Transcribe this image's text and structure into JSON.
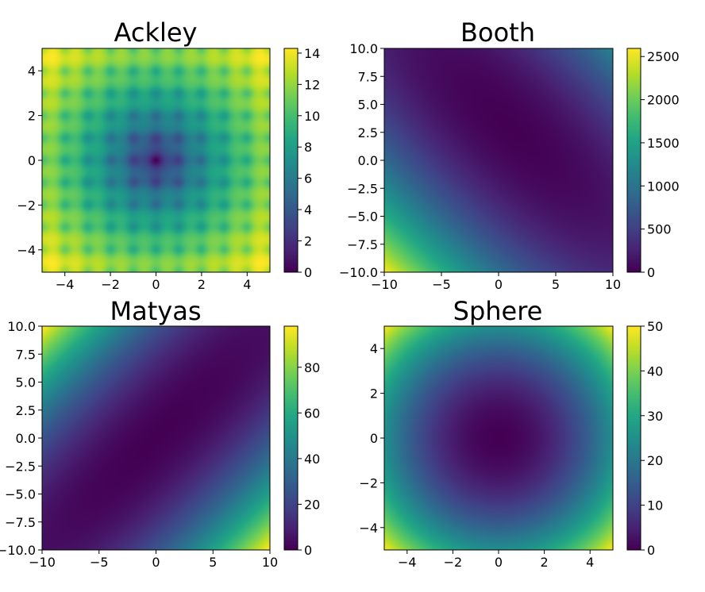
{
  "chart_data": [
    {
      "type": "heatmap",
      "title": "Ackley",
      "function": "ackley",
      "colormap": "viridis",
      "xlim": [
        -5,
        5
      ],
      "ylim": [
        -5,
        5
      ],
      "xticks": [
        "−4",
        "−2",
        "0",
        "2",
        "4"
      ],
      "xtick_values": [
        -4,
        -2,
        0,
        2,
        4
      ],
      "yticks": [
        "−4",
        "−2",
        "0",
        "2",
        "4"
      ],
      "ytick_values": [
        -4,
        -2,
        0,
        2,
        4
      ],
      "colorbar_range": [
        0,
        14.3
      ],
      "colorbar_ticks": [
        "0",
        "2",
        "4",
        "6",
        "8",
        "10",
        "12",
        "14"
      ],
      "colorbar_tick_values": [
        0,
        2,
        4,
        6,
        8,
        10,
        12,
        14
      ]
    },
    {
      "type": "heatmap",
      "title": "Booth",
      "function": "booth",
      "colormap": "viridis",
      "xlim": [
        -10,
        10
      ],
      "ylim": [
        -10,
        10
      ],
      "xticks": [
        "−10",
        "−5",
        "0",
        "5",
        "10"
      ],
      "xtick_values": [
        -10,
        -5,
        0,
        5,
        10
      ],
      "yticks": [
        "−10.0",
        "−7.5",
        "−5.0",
        "−2.5",
        "0.0",
        "2.5",
        "5.0",
        "7.5",
        "10.0"
      ],
      "ytick_values": [
        -10,
        -7.5,
        -5,
        -2.5,
        0,
        2.5,
        5,
        7.5,
        10
      ],
      "colorbar_range": [
        0,
        2594
      ],
      "colorbar_ticks": [
        "0",
        "500",
        "1000",
        "1500",
        "2000",
        "2500"
      ],
      "colorbar_tick_values": [
        0,
        500,
        1000,
        1500,
        2000,
        2500
      ]
    },
    {
      "type": "heatmap",
      "title": "Matyas",
      "function": "matyas",
      "colormap": "viridis",
      "xlim": [
        -10,
        10
      ],
      "ylim": [
        -10,
        10
      ],
      "xticks": [
        "−10",
        "−5",
        "0",
        "5",
        "10"
      ],
      "xtick_values": [
        -10,
        -5,
        0,
        5,
        10
      ],
      "yticks": [
        "−10.0",
        "−7.5",
        "−5.0",
        "−2.5",
        "0.0",
        "2.5",
        "5.0",
        "7.5",
        "10.0"
      ],
      "ytick_values": [
        -10,
        -7.5,
        -5,
        -2.5,
        0,
        2.5,
        5,
        7.5,
        10
      ],
      "colorbar_range": [
        0,
        98
      ],
      "colorbar_ticks": [
        "0",
        "20",
        "40",
        "60",
        "80"
      ],
      "colorbar_tick_values": [
        0,
        20,
        40,
        60,
        80
      ]
    },
    {
      "type": "heatmap",
      "title": "Sphere",
      "function": "sphere",
      "colormap": "viridis",
      "xlim": [
        -5,
        5
      ],
      "ylim": [
        -5,
        5
      ],
      "xticks": [
        "−4",
        "−2",
        "0",
        "2",
        "4"
      ],
      "xtick_values": [
        -4,
        -2,
        0,
        2,
        4
      ],
      "yticks": [
        "−4",
        "−2",
        "0",
        "2",
        "4"
      ],
      "ytick_values": [
        -4,
        -2,
        0,
        2,
        4
      ],
      "colorbar_range": [
        0,
        50
      ],
      "colorbar_ticks": [
        "0",
        "10",
        "20",
        "30",
        "40",
        "50"
      ],
      "colorbar_tick_values": [
        0,
        10,
        20,
        30,
        40,
        50
      ]
    }
  ]
}
